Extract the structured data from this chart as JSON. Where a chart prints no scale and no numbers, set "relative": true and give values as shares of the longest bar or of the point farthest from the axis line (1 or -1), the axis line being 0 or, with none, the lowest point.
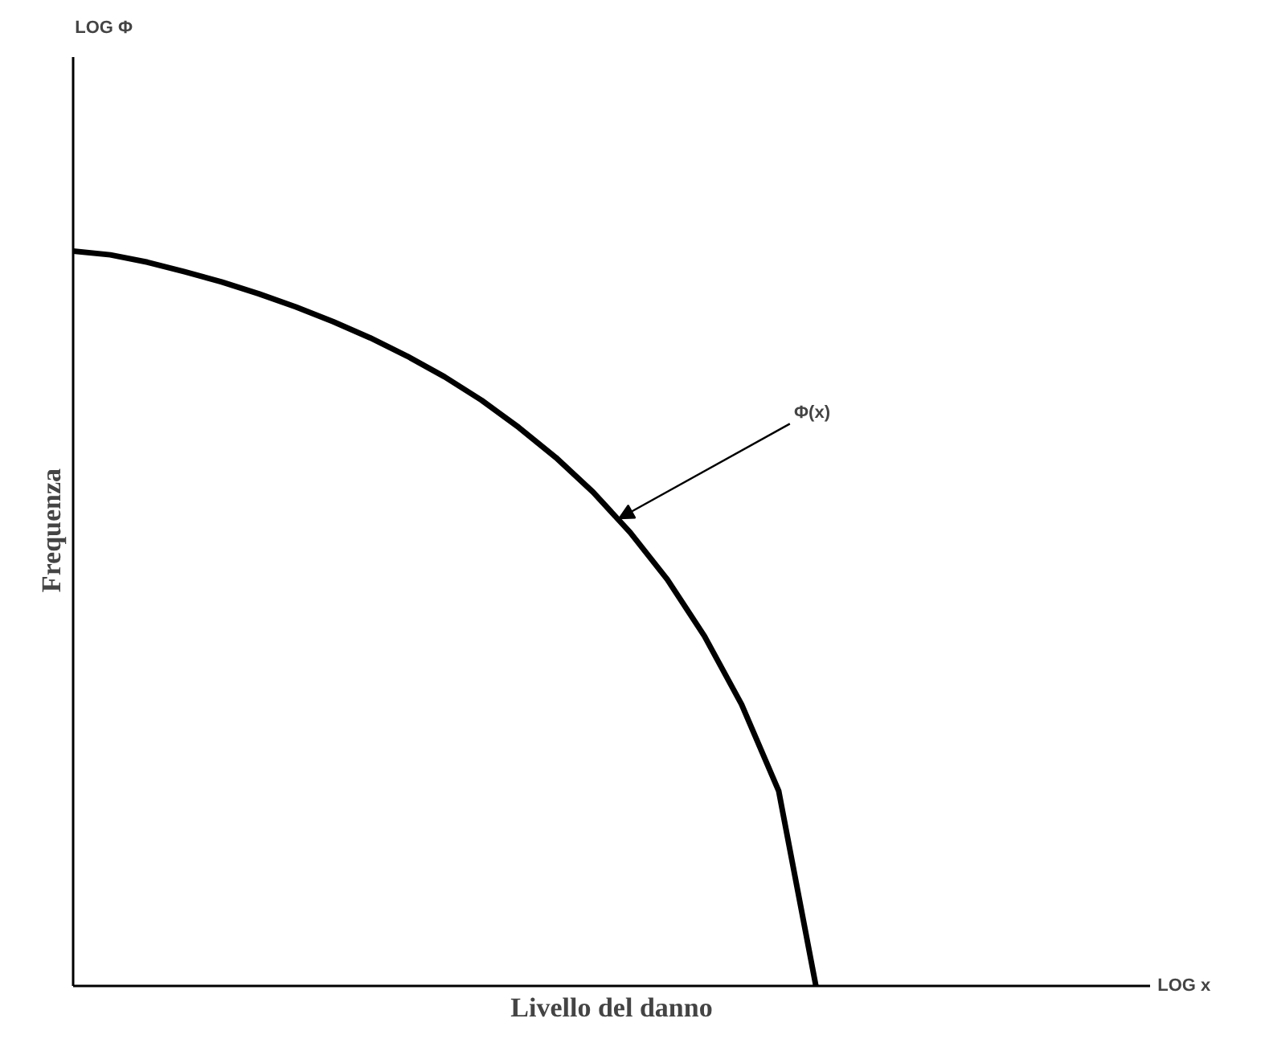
{
  "chart_data": {
    "type": "line",
    "relative": true,
    "xlabel": "Livello del danno",
    "ylabel": "Frequenza",
    "annotations": [
      "LOG Φ",
      "LOG x",
      "Φ(x)"
    ],
    "categories": [
      null,
      null,
      null,
      null,
      null,
      null,
      null,
      null,
      null,
      null,
      null,
      null,
      null,
      null,
      null,
      null,
      null,
      null,
      null,
      null,
      null,
      null,
      null,
      null,
      null,
      null,
      null,
      null,
      null,
      null
    ],
    "series": [
      {
        "color": "#000000",
        "values": [
          1,
          0.995,
          0.985,
          0.972,
          0.958,
          0.942,
          0.924,
          0.904,
          0.882,
          0.857,
          0.829,
          0.797,
          0.76,
          0.719,
          0.672,
          0.617,
          0.553,
          0.476,
          0.383,
          0.265,
          0,
          null,
          null,
          null,
          null,
          null,
          null,
          null,
          null,
          null
        ]
      }
    ],
    "marker": "none",
    "line_style": "solid"
  }
}
